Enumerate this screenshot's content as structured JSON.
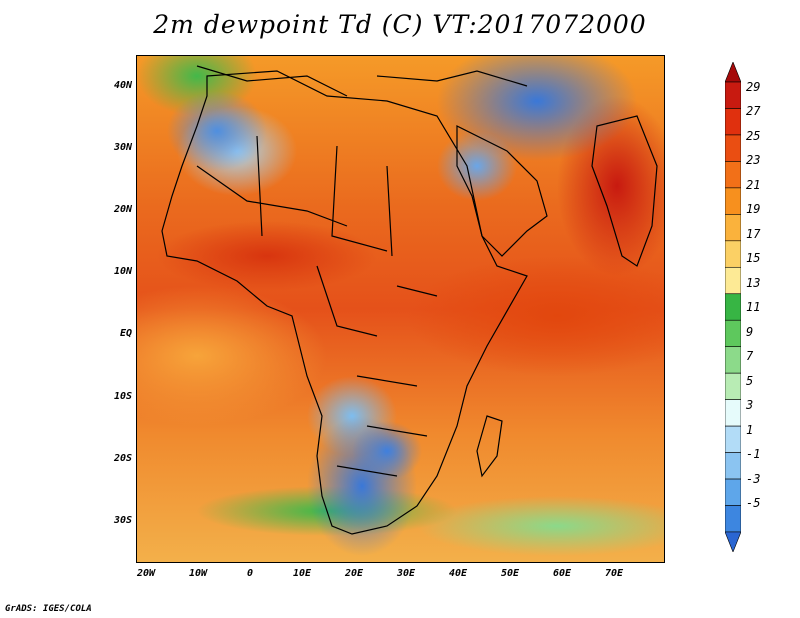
{
  "title": "2m dewpoint Td (C) VT:2017072000",
  "credit": "GrADS: IGES/COLA",
  "map": {
    "variable": "2m dewpoint temperature",
    "units": "C",
    "lon_range": [
      -20,
      80
    ],
    "lat_range": [
      -36,
      45
    ],
    "y_ticks": [
      "40N",
      "30N",
      "20N",
      "10N",
      "EQ",
      "10S",
      "20S",
      "30S"
    ],
    "x_ticks": [
      "20W",
      "10W",
      "0",
      "10E",
      "20E",
      "30E",
      "40E",
      "50E",
      "60E",
      "70E"
    ]
  },
  "colorbar": {
    "labels": [
      "29",
      "27",
      "25",
      "23",
      "21",
      "19",
      "17",
      "15",
      "13",
      "11",
      "9",
      "7",
      "5",
      "3",
      "1",
      "-1",
      "-3",
      "-5"
    ],
    "colors": [
      "#a50a0a",
      "#c81a10",
      "#e0300e",
      "#ea4e12",
      "#f27018",
      "#f7901e",
      "#fab23c",
      "#fbd065",
      "#fdea95",
      "#37b544",
      "#5ec85d",
      "#8cda8a",
      "#b8ecb4",
      "#e6fbfb",
      "#b2dcf7",
      "#8bc4f1",
      "#5ea6ea",
      "#3d86e0",
      "#2a66d2"
    ]
  }
}
